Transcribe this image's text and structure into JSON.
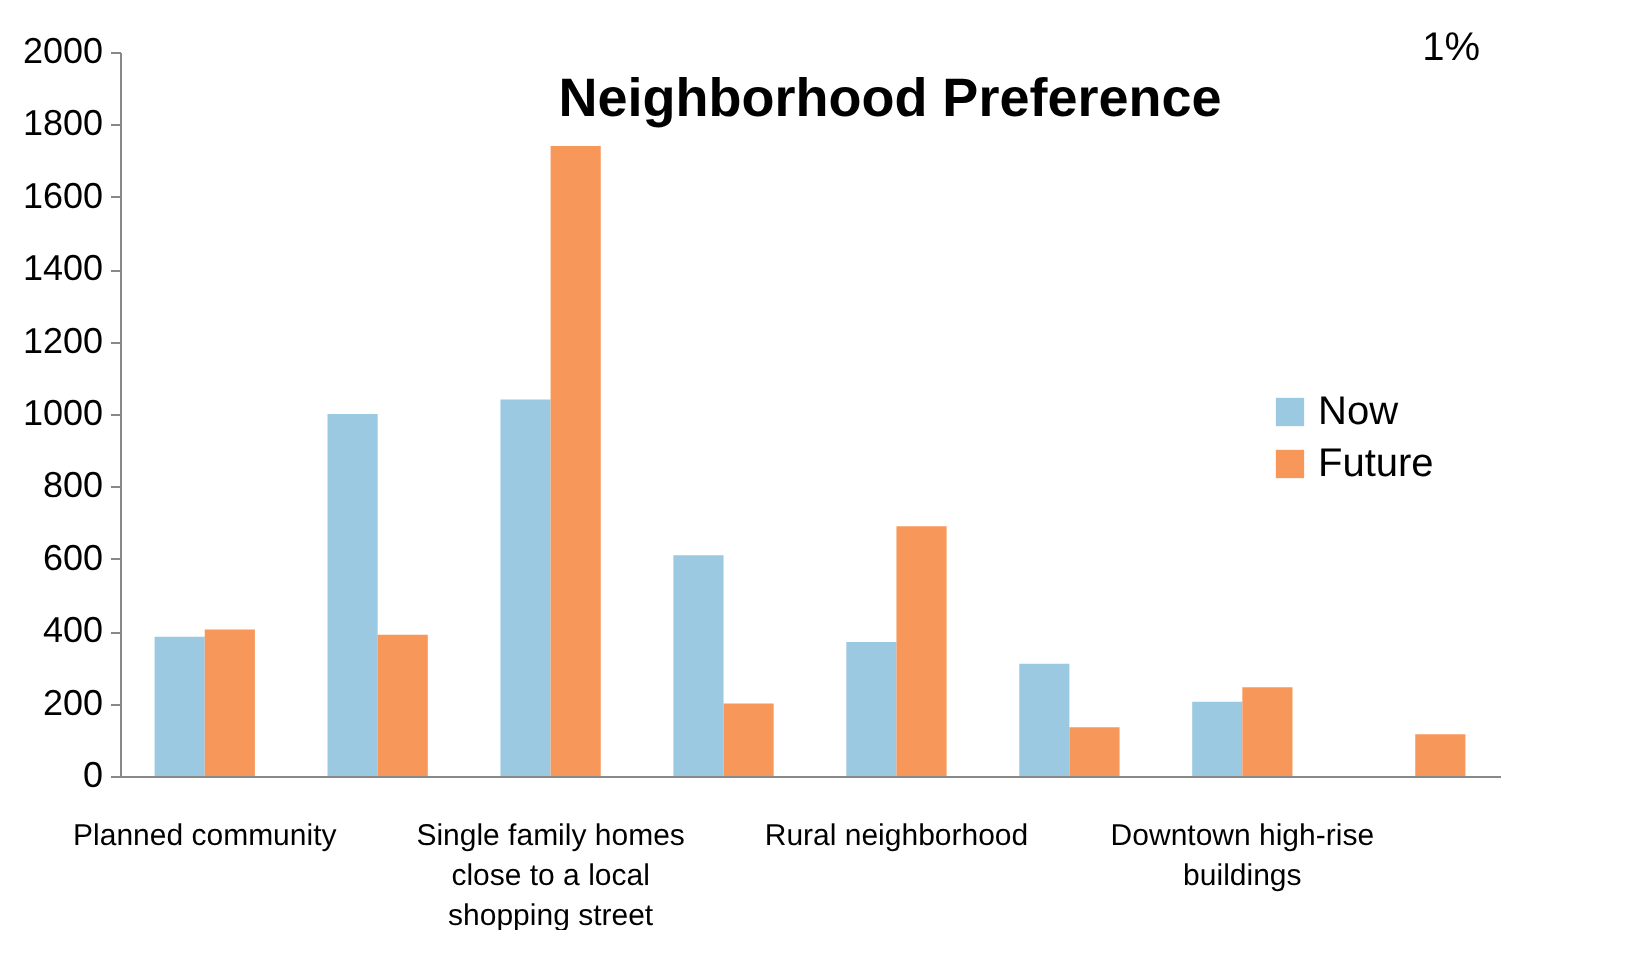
{
  "chart_data": {
    "type": "bar",
    "title": "Neighborhood Preference",
    "categories": [
      "Planned community",
      null,
      "Single family homes close to a local shopping street",
      null,
      "Rural neighborhood",
      null,
      "Downtown high-rise buildings",
      null
    ],
    "series": [
      {
        "name": "Now",
        "color": "#9bc9e1",
        "values": [
          385,
          1000,
          1040,
          610,
          370,
          310,
          205,
          null
        ]
      },
      {
        "name": "Future",
        "color": "#f8975a",
        "values": [
          405,
          390,
          1740,
          200,
          690,
          135,
          245,
          115
        ]
      }
    ],
    "ylim": [
      0,
      2000
    ],
    "yticks": [
      0,
      200,
      400,
      600,
      800,
      1000,
      1200,
      1400,
      1600,
      1800,
      2000
    ],
    "legend": "right",
    "annotations": [
      "1%"
    ]
  }
}
